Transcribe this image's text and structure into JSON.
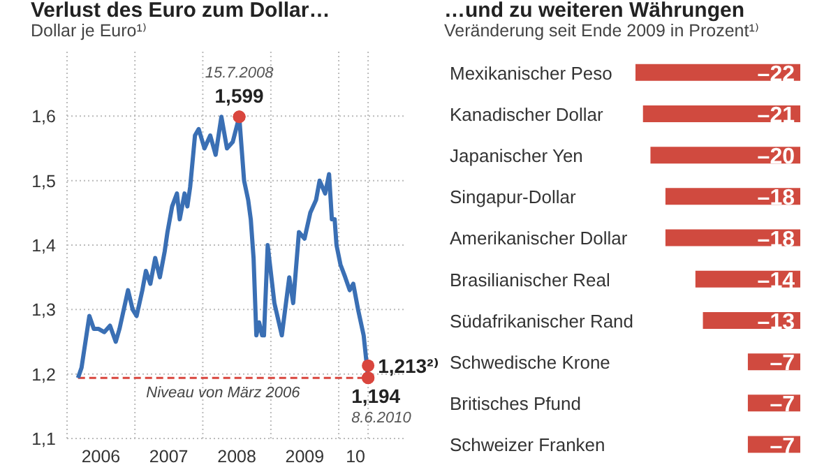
{
  "chart_data": [
    {
      "type": "line",
      "title": "Verlust des Euro zum Dollar…",
      "subtitle": "Dollar je Euro¹⁾",
      "x": [
        "2006-03-01",
        "2006-03-20",
        "2006-05-01",
        "2006-05-25",
        "2006-06-20",
        "2006-07-20",
        "2006-08-20",
        "2006-09-20",
        "2006-10-10",
        "2006-11-25",
        "2006-12-20",
        "2007-01-10",
        "2007-02-10",
        "2007-03-01",
        "2007-03-25",
        "2007-04-20",
        "2007-05-15",
        "2007-06-10",
        "2007-06-25",
        "2007-07-20",
        "2007-08-15",
        "2007-08-30",
        "2007-09-25",
        "2007-10-10",
        "2007-10-25",
        "2007-11-20",
        "2007-12-10",
        "2008-01-10",
        "2008-02-10",
        "2008-03-10",
        "2008-04-10",
        "2008-05-10",
        "2008-06-10",
        "2008-07-15",
        "2008-08-10",
        "2008-09-01",
        "2008-09-15",
        "2008-09-30",
        "2008-10-15",
        "2008-10-30",
        "2008-11-15",
        "2008-11-25",
        "2008-12-15",
        "2009-01-20",
        "2009-03-01",
        "2009-04-10",
        "2009-05-01",
        "2009-06-01",
        "2009-07-01",
        "2009-08-01",
        "2009-09-01",
        "2009-09-20",
        "2009-10-20",
        "2009-11-10",
        "2009-11-25",
        "2009-12-10",
        "2009-12-20",
        "2010-01-10",
        "2010-02-05",
        "2010-03-01",
        "2010-03-20",
        "2010-04-15",
        "2010-05-15",
        "2010-06-08"
      ],
      "series": [
        {
          "color": "#3a6fb4",
          "values": [
            1.194,
            1.21,
            1.29,
            1.27,
            1.27,
            1.265,
            1.275,
            1.25,
            1.27,
            1.33,
            1.3,
            1.29,
            1.33,
            1.36,
            1.34,
            1.38,
            1.35,
            1.39,
            1.42,
            1.46,
            1.48,
            1.44,
            1.48,
            1.46,
            1.49,
            1.57,
            1.58,
            1.55,
            1.57,
            1.54,
            1.599,
            1.55,
            1.56,
            1.599,
            1.5,
            1.47,
            1.44,
            1.38,
            1.26,
            1.28,
            1.26,
            1.26,
            1.4,
            1.31,
            1.26,
            1.35,
            1.31,
            1.42,
            1.41,
            1.45,
            1.47,
            1.5,
            1.48,
            1.51,
            1.44,
            1.44,
            1.4,
            1.37,
            1.35,
            1.33,
            1.34,
            1.3,
            1.26,
            1.194
          ]
        }
      ],
      "xlim": [
        "2006-01-01",
        "2010-12-31"
      ],
      "xticks": [
        {
          "value": "2006-01-01",
          "label": null
        },
        {
          "value": "2006-07-02",
          "label": "2006"
        },
        {
          "value": "2007-01-01",
          "label": null
        },
        {
          "value": "2007-07-02",
          "label": "2007"
        },
        {
          "value": "2008-01-01",
          "label": null
        },
        {
          "value": "2008-07-02",
          "label": "2008"
        },
        {
          "value": "2009-01-01",
          "label": null
        },
        {
          "value": "2009-07-02",
          "label": "2009"
        },
        {
          "value": "2010-01-01",
          "label": null
        },
        {
          "value": "2010-04-01",
          "label": "10"
        },
        {
          "value": "2010-06-08",
          "label": null
        }
      ],
      "ylim": [
        1.1,
        1.7
      ],
      "yticks": [
        {
          "value": 1.1,
          "label": "1,1"
        },
        {
          "value": 1.2,
          "label": "1,2"
        },
        {
          "value": 1.3,
          "label": "1,3"
        },
        {
          "value": 1.4,
          "label": "1,4"
        },
        {
          "value": 1.5,
          "label": "1,5"
        },
        {
          "value": 1.6,
          "label": "1,6"
        }
      ],
      "grid": true,
      "ref_lines": [
        {
          "axis": "y",
          "value": 1.194,
          "label": "Niveau von März 2006",
          "color": "#d9463e",
          "line_style": "dashed"
        }
      ],
      "annotations": [
        {
          "text": "15.7.2008",
          "x": "2008-07-15",
          "y": 1.599
        },
        {
          "text": "1,599",
          "x": "2008-07-15",
          "y": 1.599
        },
        {
          "text": "1,194",
          "x": "2010-06-08",
          "y": 1.194
        },
        {
          "text": "8.6.2010",
          "x": "2010-06-08",
          "y": 1.194
        },
        {
          "text": "1,213²⁾",
          "x": "2010-06-08",
          "y": 1.213
        }
      ]
    },
    {
      "type": "bar",
      "orientation": "horizontal",
      "title": "…und zu weiteren Währungen",
      "subtitle": "Veränderung seit Ende 2009 in Prozent¹⁾",
      "categories": [
        "Mexikanischer Peso",
        "Kanadischer Dollar",
        "Japanischer Yen",
        "Singapur-Dollar",
        "Amerikanischer Dollar",
        "Brasilianischer Real",
        "Südafrikanischer Rand",
        "Schwedische Krone",
        "Britisches Pfund",
        "Schweizer Franken"
      ],
      "values": [
        -22,
        -21,
        -20,
        -18,
        -18,
        -14,
        -13,
        -7,
        -7,
        -7
      ],
      "value_labels": [
        "–22",
        "–21",
        "–20",
        "–18",
        "–18",
        "–14",
        "–13",
        "–7",
        "–7",
        "–7"
      ],
      "color": "#d04a3f",
      "xlim": [
        -22,
        0
      ],
      "tick_labels": "y"
    }
  ]
}
